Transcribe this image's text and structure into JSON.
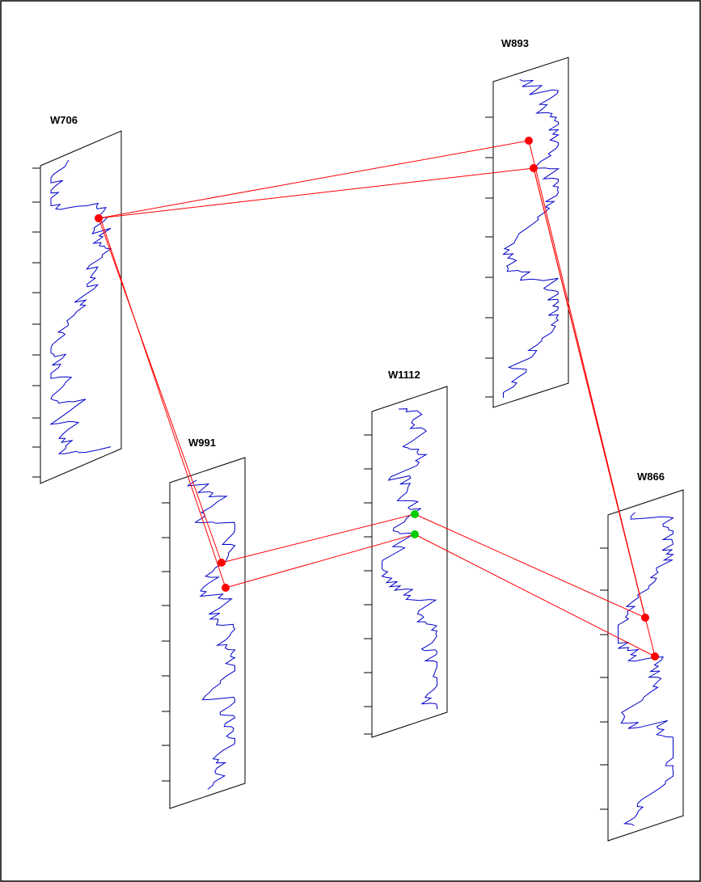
{
  "colors": {
    "background": "#ffffff",
    "frame": "#000000",
    "panel_stroke": "#000000",
    "log_curve": "#0000cc",
    "correlation_line": "#ff0000",
    "marker_primary": "#ff0000",
    "marker_secondary": "#00cc00"
  },
  "wells": [
    {
      "id": "w706",
      "name": "W706"
    },
    {
      "id": "w893",
      "name": "W893"
    },
    {
      "id": "w1112",
      "name": "W1112"
    },
    {
      "id": "w991",
      "name": "W991"
    },
    {
      "id": "w866",
      "name": "W866"
    }
  ],
  "correlations": [
    {
      "from": "W706",
      "to": "W893",
      "color": "red"
    },
    {
      "from": "W706",
      "to": "W991",
      "color": "red"
    },
    {
      "from": "W893",
      "to": "W866",
      "color": "red"
    },
    {
      "from": "W991",
      "to": "W1112",
      "color": "red"
    },
    {
      "from": "W1112",
      "to": "W866",
      "color": "red"
    }
  ]
}
